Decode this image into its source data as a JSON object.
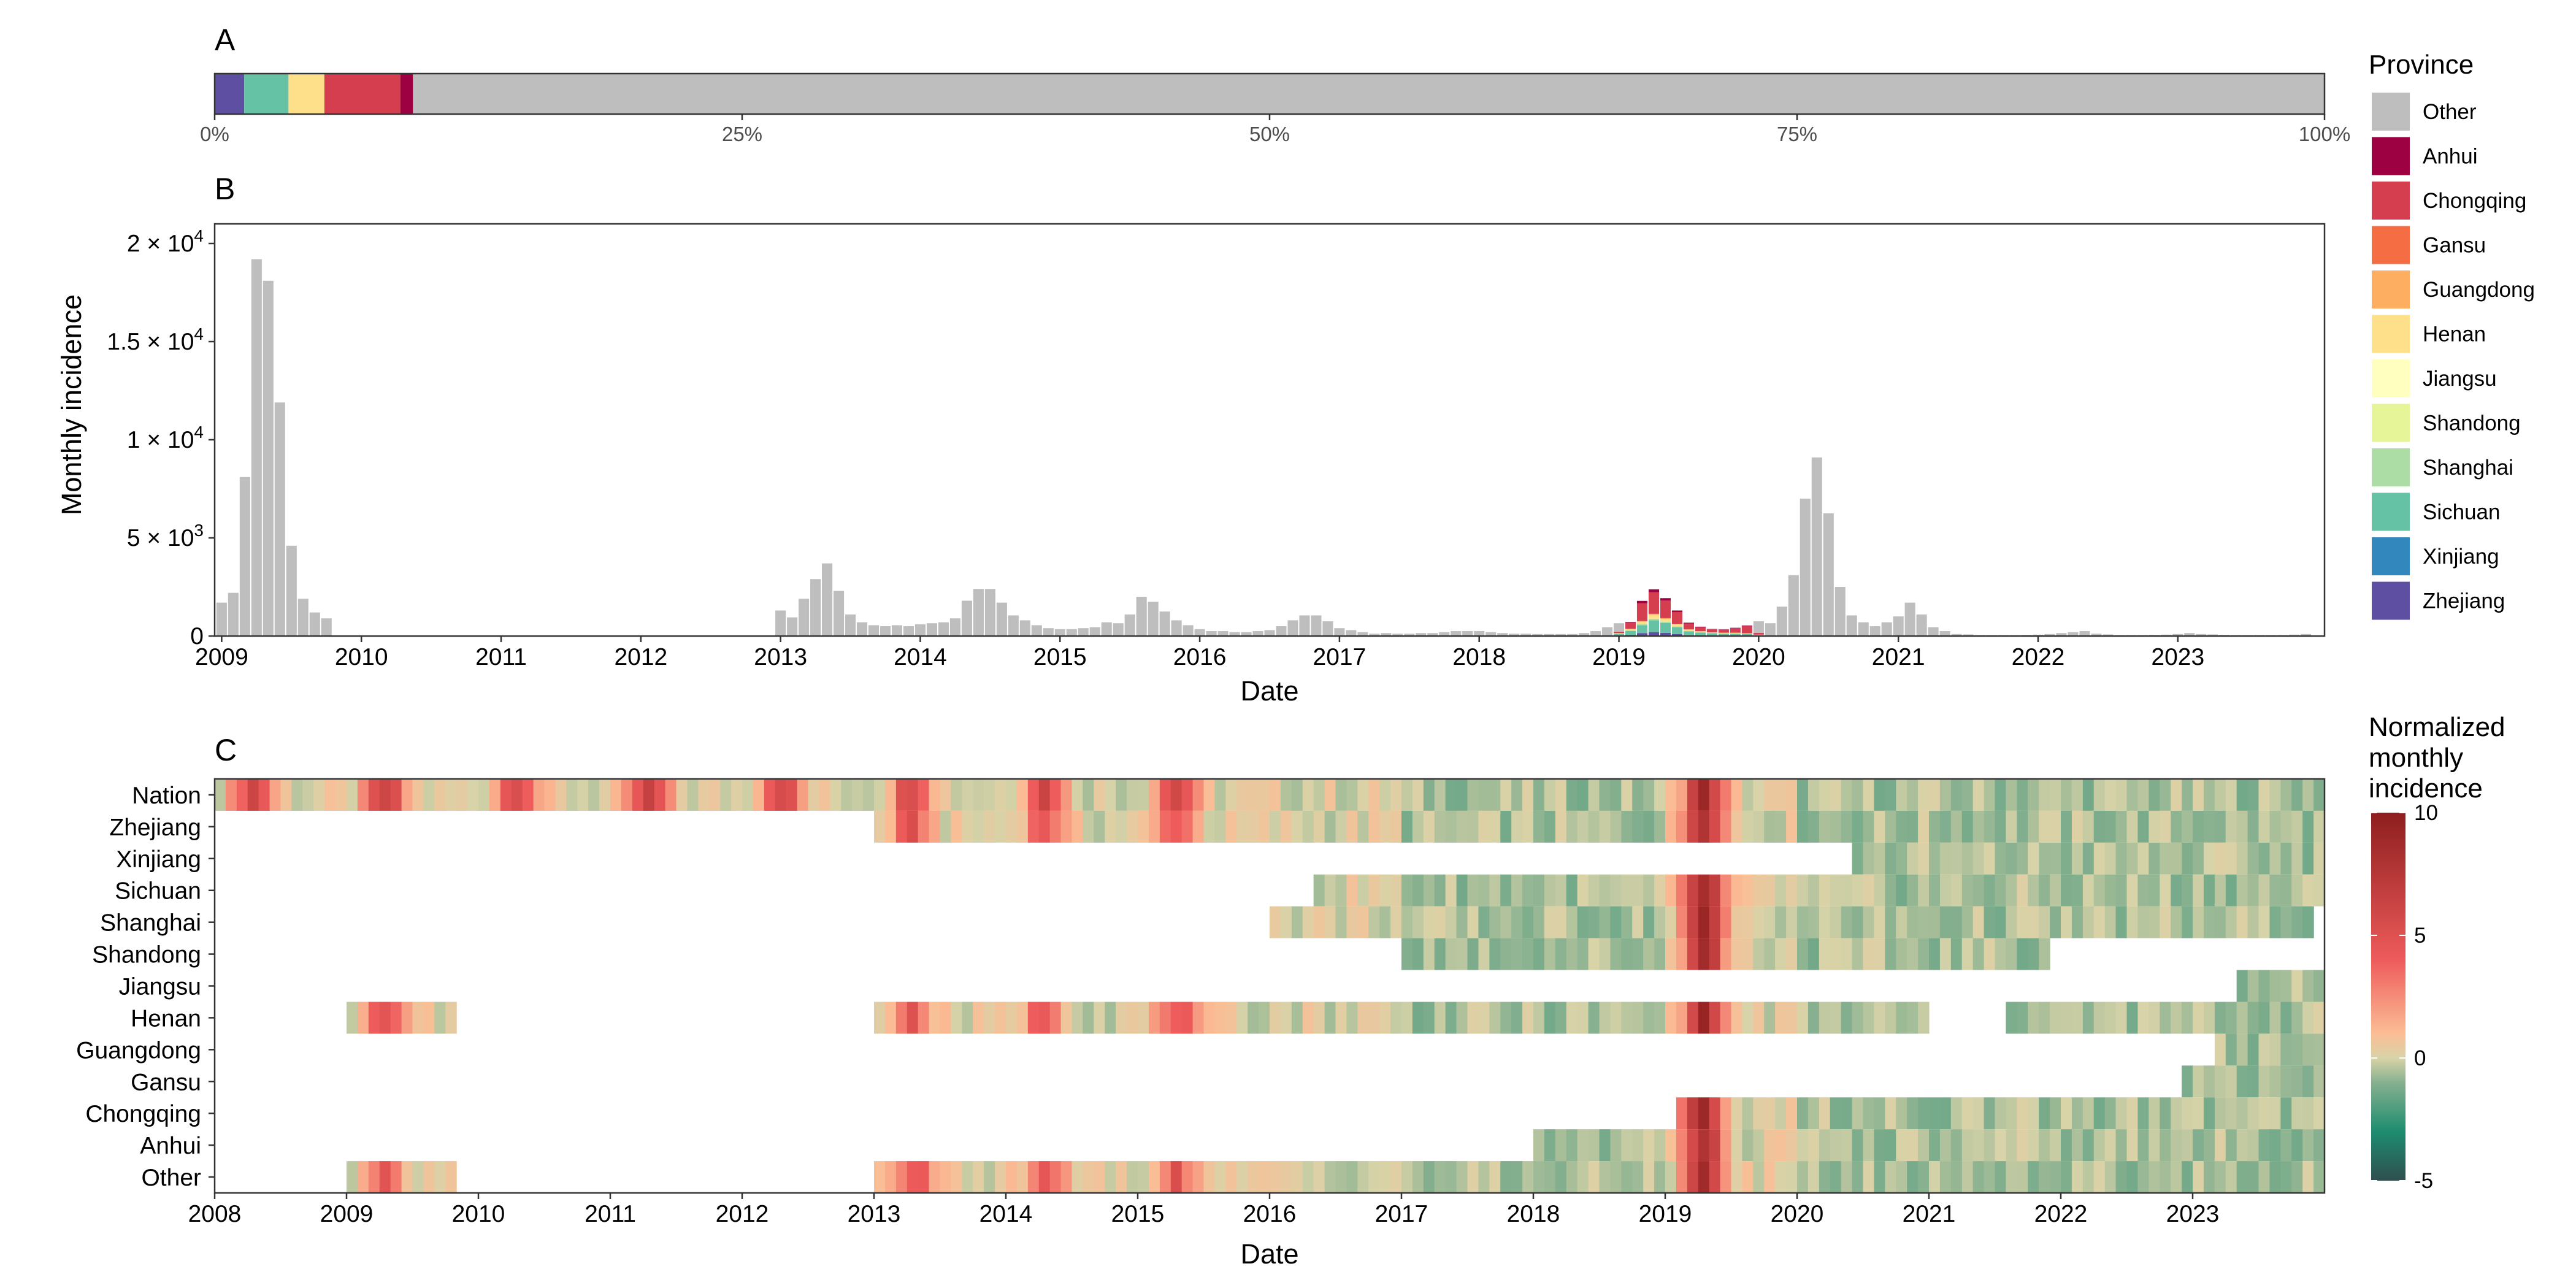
{
  "chart_data": [
    {
      "panel": "A",
      "type": "bar",
      "orientation": "horizontal-stacked-proportion",
      "x_tick_labels": [
        "0%",
        "25%",
        "50%",
        "75%",
        "100%"
      ],
      "segments": [
        {
          "province": "Zhejiang",
          "share": 0.014
        },
        {
          "province": "Sichuan",
          "share": 0.021
        },
        {
          "province": "Henan",
          "share": 0.017
        },
        {
          "province": "Chongqing",
          "share": 0.036
        },
        {
          "province": "Anhui",
          "share": 0.006
        },
        {
          "province": "Other",
          "share": 0.906
        }
      ]
    },
    {
      "panel": "B",
      "type": "bar",
      "stacked": true,
      "xlabel": "Date",
      "ylabel": "Monthly incidence",
      "ylim": [
        0,
        21000
      ],
      "y_ticks": [
        {
          "value": 0,
          "label": "0"
        },
        {
          "value": 5000,
          "label": "5 × 10",
          "exp": "3"
        },
        {
          "value": 10000,
          "label": "1 × 10",
          "exp": "4"
        },
        {
          "value": 15000,
          "label": "1.5 × 10",
          "exp": "4"
        },
        {
          "value": 20000,
          "label": "2 × 10",
          "exp": "4"
        }
      ],
      "x_range": [
        "2009-01",
        "2023-12"
      ],
      "x_tick_labels": [
        "2009",
        "2010",
        "2011",
        "2012",
        "2013",
        "2014",
        "2015",
        "2016",
        "2017",
        "2018",
        "2019",
        "2020",
        "2021",
        "2022",
        "2023"
      ],
      "series_other": [
        {
          "start": "2009-01",
          "values": [
            1700,
            2200,
            8100,
            19200,
            18100,
            11900,
            4600,
            1900,
            1200,
            900
          ]
        },
        {
          "start": "2013-01",
          "values": [
            1300,
            950,
            1900,
            2900,
            3700,
            2300,
            1100,
            700,
            550,
            500,
            550,
            500,
            600,
            650,
            700,
            900,
            1800,
            2400,
            2400,
            1700,
            1050,
            800,
            550,
            400,
            350,
            350,
            400,
            450,
            700,
            650,
            1100,
            2000,
            1750,
            1250,
            800,
            550,
            350,
            250,
            250,
            200,
            200,
            250,
            300,
            500,
            800,
            1050,
            1050,
            750,
            400,
            300,
            200,
            120,
            150,
            120,
            120,
            150,
            150,
            200,
            250,
            250,
            250,
            200,
            150,
            120,
            120,
            100,
            100,
            100,
            100,
            150,
            250,
            450,
            650,
            500,
            450,
            300,
            250,
            200,
            150,
            200,
            300,
            350,
            450,
            550,
            750,
            650,
            1500,
            3100,
            7000,
            9100,
            6250,
            2500,
            1050,
            700,
            500,
            700,
            1000,
            1700,
            1100,
            450,
            250,
            100,
            80,
            50,
            50,
            50,
            50,
            60,
            70,
            100,
            150,
            200,
            250,
            120,
            80,
            50,
            50,
            50,
            60,
            70,
            100,
            150,
            100,
            80,
            60,
            50,
            50,
            50,
            50,
            50,
            70,
            100,
            120,
            90,
            70,
            60,
            50,
            40,
            40,
            40,
            40,
            40,
            40,
            60,
            70,
            60,
            50,
            40,
            40,
            40,
            40,
            40,
            40,
            40,
            40,
            40,
            40,
            40,
            40,
            40,
            40,
            40,
            40
          ]
        }
      ],
      "stacked_2019": {
        "months": [
          "2019-01",
          "2019-02",
          "2019-03",
          "2019-04",
          "2019-05",
          "2019-06",
          "2019-07",
          "2019-08",
          "2019-09",
          "2019-10",
          "2019-11",
          "2019-12",
          "2020-01"
        ],
        "Zhejiang": [
          30,
          60,
          150,
          200,
          160,
          100,
          40,
          30,
          20,
          20,
          20,
          20,
          10
        ],
        "Sichuan": [
          80,
          200,
          400,
          600,
          500,
          350,
          200,
          150,
          120,
          100,
          100,
          80,
          40
        ],
        "Shanghai": [
          10,
          30,
          60,
          80,
          60,
          40,
          20,
          15,
          10,
          10,
          10,
          10,
          5
        ],
        "Henan": [
          20,
          60,
          120,
          200,
          150,
          100,
          60,
          40,
          30,
          30,
          30,
          20,
          10
        ],
        "Guangdong": [
          10,
          20,
          40,
          50,
          40,
          30,
          20,
          10,
          10,
          10,
          10,
          10,
          5
        ],
        "Chongqing": [
          60,
          300,
          900,
          1100,
          900,
          600,
          300,
          200,
          150,
          150,
          200,
          350,
          80
        ],
        "Anhui": [
          10,
          40,
          120,
          150,
          120,
          80,
          40,
          30,
          20,
          20,
          30,
          40,
          10
        ]
      }
    },
    {
      "panel": "C",
      "type": "heatmap",
      "xlabel": "Date",
      "x_range": [
        "2008-01",
        "2023-12"
      ],
      "x_tick_labels": [
        "2008",
        "2009",
        "2010",
        "2011",
        "2012",
        "2013",
        "2014",
        "2015",
        "2016",
        "2017",
        "2018",
        "2019",
        "2020",
        "2021",
        "2022",
        "2023"
      ],
      "rows": [
        "Nation",
        "Zhejiang",
        "Xinjiang",
        "Sichuan",
        "Shanghai",
        "Shandong",
        "Jiangsu",
        "Henan",
        "Guangdong",
        "Gansu",
        "Chongqing",
        "Anhui",
        "Other"
      ],
      "color_scale": {
        "min": -5,
        "max": 10,
        "tick_labels": [
          "10",
          "5",
          "0",
          "-5"
        ]
      },
      "row_coverage": {
        "Nation": [
          [
            "2008-01",
            "2023-12"
          ]
        ],
        "Zhejiang": [
          [
            "2013-01",
            "2023-12"
          ]
        ],
        "Xinjiang": [
          [
            "2020-06",
            "2023-12"
          ]
        ],
        "Sichuan": [
          [
            "2016-05",
            "2023-12"
          ]
        ],
        "Shanghai": [
          [
            "2016-01",
            "2023-11"
          ]
        ],
        "Shandong": [
          [
            "2017-01",
            "2021-11"
          ]
        ],
        "Jiangsu": [
          [
            "2023-05",
            "2023-12"
          ]
        ],
        "Henan": [
          [
            "2009-01",
            "2009-10"
          ],
          [
            "2013-01",
            "2020-12"
          ],
          [
            "2021-08",
            "2023-12"
          ]
        ],
        "Guangdong": [
          [
            "2023-03",
            "2023-12"
          ]
        ],
        "Gansu": [
          [
            "2022-12",
            "2023-12"
          ]
        ],
        "Chongqing": [
          [
            "2019-02",
            "2023-12"
          ]
        ],
        "Anhui": [
          [
            "2018-01",
            "2023-12"
          ]
        ],
        "Other": [
          [
            "2009-01",
            "2009-10"
          ],
          [
            "2013-01",
            "2023-12"
          ]
        ]
      },
      "peaks": [
        "2008-04",
        "2009-04",
        "2010-04",
        "2011-04",
        "2012-04",
        "2013-04",
        "2014-04",
        "2015-04",
        "2019-04"
      ]
    }
  ],
  "labels": {
    "panel_a": "A",
    "panel_b": "B",
    "panel_c": "C",
    "b_ylabel": "Monthly incidence",
    "b_xlabel": "Date",
    "c_xlabel": "Date"
  },
  "legend_province": {
    "title": "Province",
    "items": [
      {
        "label": "Other",
        "color": "#BEBEBE"
      },
      {
        "label": "Anhui",
        "color": "#9E0142"
      },
      {
        "label": "Chongqing",
        "color": "#D53E4F"
      },
      {
        "label": "Gansu",
        "color": "#F46D43"
      },
      {
        "label": "Guangdong",
        "color": "#FDAE61"
      },
      {
        "label": "Henan",
        "color": "#FEE08B"
      },
      {
        "label": "Jiangsu",
        "color": "#FFFFBF"
      },
      {
        "label": "Shandong",
        "color": "#E6F598"
      },
      {
        "label": "Shanghai",
        "color": "#ABDDA4"
      },
      {
        "label": "Sichuan",
        "color": "#66C2A5"
      },
      {
        "label": "Xinjiang",
        "color": "#3288BD"
      },
      {
        "label": "Zhejiang",
        "color": "#5E4FA2"
      }
    ]
  },
  "legend_heat": {
    "title_lines": [
      "Normalized",
      "monthly",
      "incidence"
    ],
    "ticks": [
      "10",
      "5",
      "0",
      "-5"
    ],
    "colors": [
      "#2F4F4F",
      "#1E8C70",
      "#86B08F",
      "#D8D3A8",
      "#FBBD95",
      "#EE5B5B",
      "#8E1E1E"
    ]
  }
}
